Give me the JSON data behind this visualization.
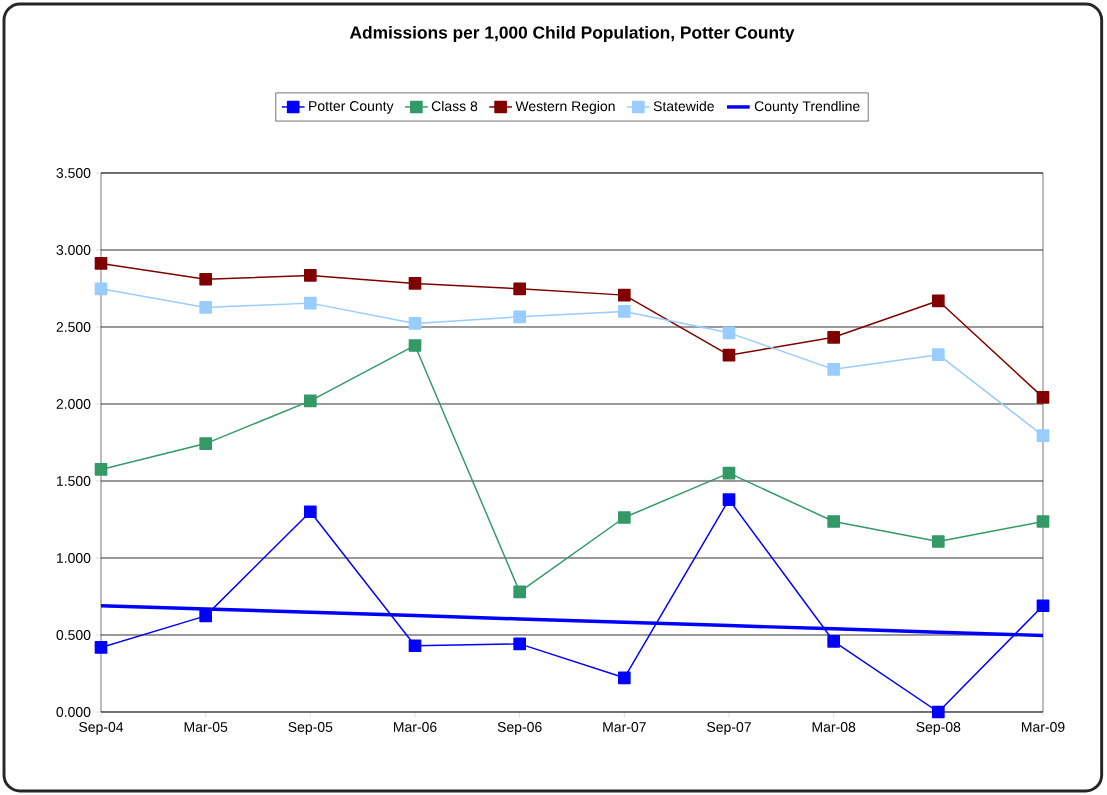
{
  "chart_data": {
    "type": "line",
    "title": "Admissions per 1,000 Child Population, Potter County",
    "categories": [
      "Sep-04",
      "Mar-05",
      "Sep-05",
      "Mar-06",
      "Sep-06",
      "Mar-07",
      "Sep-07",
      "Mar-08",
      "Sep-08",
      "Mar-09"
    ],
    "series": [
      {
        "name": "Potter County",
        "color": "#0000ff",
        "marker": "square",
        "values": [
          0.419,
          0.624,
          1.3,
          0.43,
          0.442,
          0.222,
          1.379,
          0.459,
          0.0,
          0.69
        ]
      },
      {
        "name": "Class 8",
        "color": "#339966",
        "marker": "square",
        "values": [
          1.575,
          1.743,
          2.02,
          2.38,
          0.78,
          1.263,
          1.551,
          1.237,
          1.107,
          1.237
        ]
      },
      {
        "name": "Western Region",
        "color": "#800000",
        "marker": "square",
        "values": [
          2.913,
          2.81,
          2.835,
          2.783,
          2.748,
          2.707,
          2.317,
          2.433,
          2.67,
          2.043
        ]
      },
      {
        "name": "Statewide",
        "color": "#99ccff",
        "marker": "square",
        "values": [
          2.748,
          2.627,
          2.655,
          2.523,
          2.566,
          2.601,
          2.462,
          2.225,
          2.32,
          1.795
        ]
      },
      {
        "name": "County Trendline",
        "color": "#0000ff",
        "marker": "none",
        "values": [
          0.69,
          0.669,
          0.647,
          0.626,
          0.604,
          0.583,
          0.561,
          0.54,
          0.518,
          0.497
        ]
      }
    ],
    "ylim": [
      0,
      3.5
    ],
    "yticks": [
      {
        "value": 0,
        "label": "0.000"
      },
      {
        "value": 0.5,
        "label": "0.500"
      },
      {
        "value": 1,
        "label": "1.000"
      },
      {
        "value": 1.5,
        "label": "1.500"
      },
      {
        "value": 2,
        "label": "2.000"
      },
      {
        "value": 2.5,
        "label": "2.500"
      },
      {
        "value": 3,
        "label": "3.000"
      },
      {
        "value": 3.5,
        "label": "3.500"
      }
    ],
    "grid": "y",
    "legend": "top"
  }
}
